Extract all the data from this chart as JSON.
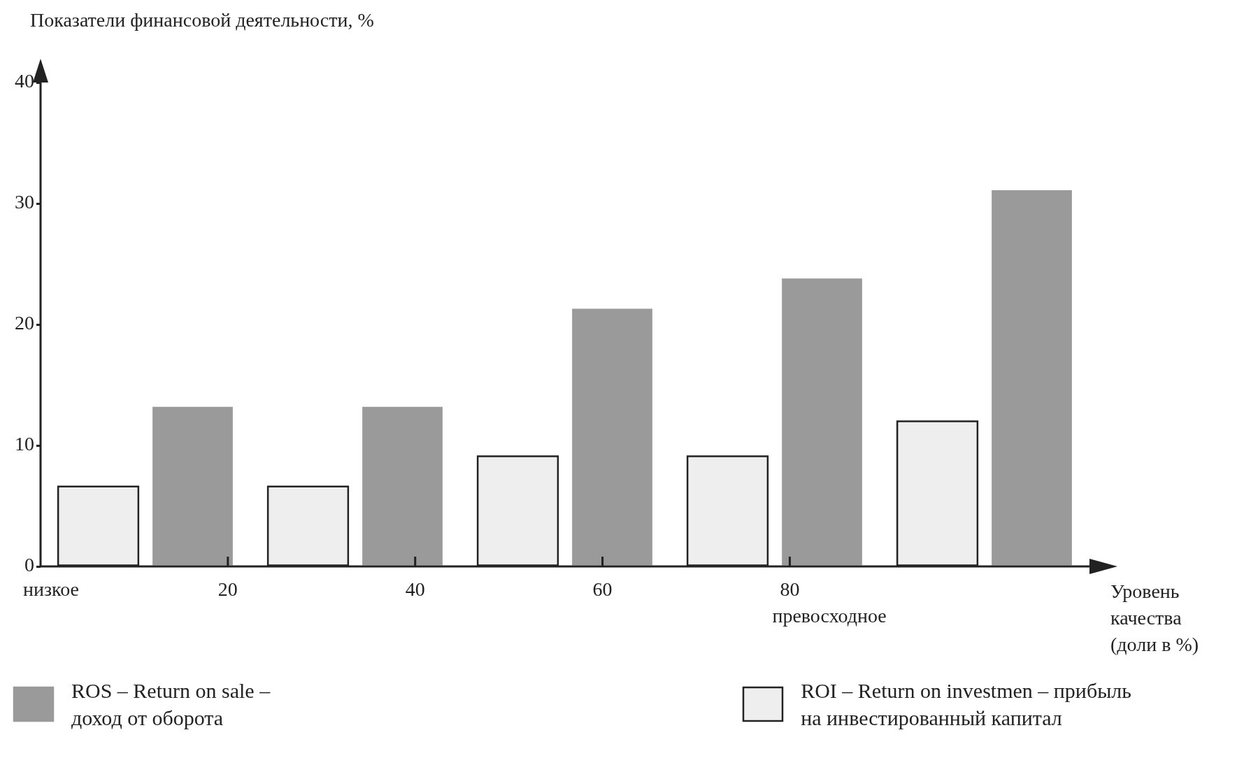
{
  "chart_data": {
    "type": "bar",
    "ylabel": "Показатели финансовой деятельности, %",
    "xlabel": "Уровень качества (доли в %)",
    "categories": [
      null,
      null,
      null,
      null,
      null
    ],
    "annotations": [
      "низкое",
      "20",
      "40",
      "60",
      "80",
      "превосходное"
    ],
    "ylim": [
      0,
      40
    ],
    "yticks": [
      0,
      10,
      20,
      30,
      40
    ],
    "legend": "bottom",
    "series": [
      {
        "name": "ROS – Return on sale   –\nдоход от оборота",
        "color": "#9a9a9a",
        "values": [
          13.2,
          13.2,
          21.3,
          23.8,
          31.1
        ]
      },
      {
        "name": "ROI – Return on investmen – прибыль\nна инвестированный капитал",
        "color": "#eeeeee",
        "values": [
          6.6,
          6.6,
          9.1,
          9.1,
          12
        ]
      }
    ]
  }
}
